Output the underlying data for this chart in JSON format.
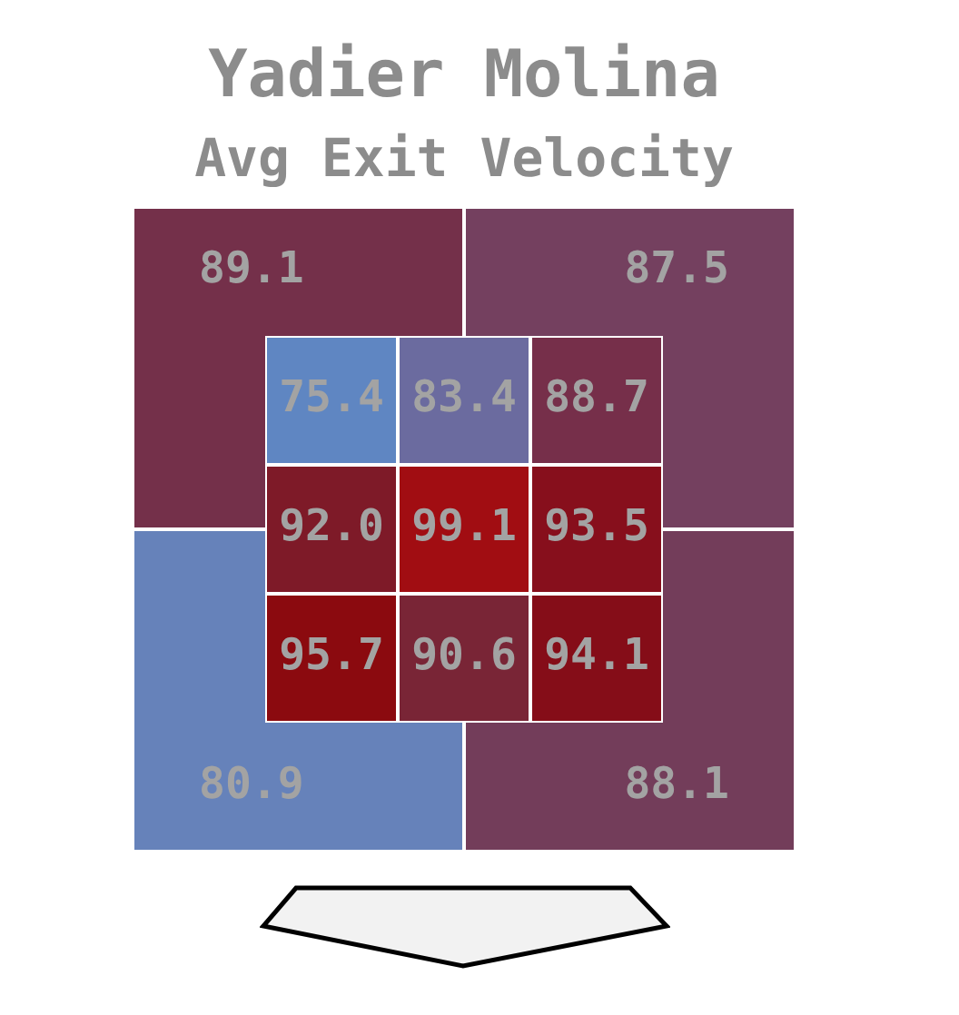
{
  "chart_data": [
    {
      "type": "heatmap",
      "title": "Yadier Molina",
      "subtitle": "Avg Exit Velocity",
      "categories": [
        null,
        null
      ],
      "y_categories": [
        null,
        null
      ],
      "cells": [
        [
          89.1,
          87.5
        ],
        [
          80.9,
          88.1
        ]
      ],
      "colors": [
        [
          "#74304a",
          "#74405f"
        ],
        [
          "#6682ba",
          "#733d5a"
        ]
      ],
      "data_labels": true
    },
    {
      "type": "heatmap",
      "categories": [
        null,
        null,
        null
      ],
      "y_categories": [
        null,
        null,
        null
      ],
      "cells": [
        [
          75.4,
          83.4,
          88.7
        ],
        [
          92.0,
          99.1,
          93.5
        ],
        [
          95.7,
          90.6,
          94.1
        ]
      ],
      "cell_labels": [
        [
          "75.4",
          "83.4",
          "88.7"
        ],
        [
          "92.0",
          "99.1",
          "93.5"
        ],
        [
          "95.7",
          "90.6",
          "94.1"
        ]
      ],
      "colors": [
        [
          "#5f86c2",
          "#6b6b9f",
          "#762f4a"
        ],
        [
          "#7e1a28",
          "#a10d12",
          "#870f1c"
        ],
        [
          "#8b0a0f",
          "#792536",
          "#850d18"
        ]
      ],
      "data_labels": true
    }
  ]
}
